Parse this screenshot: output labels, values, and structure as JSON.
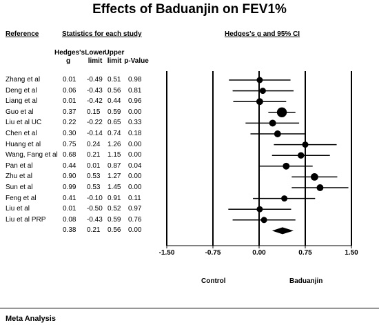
{
  "title": "Effects of Baduanjin on FEV1%",
  "headers": {
    "reference": "Reference",
    "statistics": "Statistics for each study",
    "plot": "Hedges's g and 95% CI"
  },
  "columns": {
    "g_line1": "Hedges's",
    "g_line2": "g",
    "lower_line1": "Lower",
    "lower_line2": "limit",
    "upper_line1": "Upper",
    "upper_line2": "limit",
    "p": "p-Value"
  },
  "footer": "Meta Analysis",
  "left_label": "Control",
  "right_label": "Baduanjin",
  "chart_data": {
    "type": "forest",
    "xlim": [
      -1.5,
      1.5
    ],
    "xticks": [
      -1.5,
      -0.75,
      0.0,
      0.75,
      1.5
    ],
    "xtick_labels": [
      "-1.50",
      "-0.75",
      "0.00",
      "0.75",
      "1.50"
    ],
    "studies": [
      {
        "name": "Zhang et al",
        "g": 0.01,
        "lower": -0.49,
        "upper": 0.51,
        "p": "0.98",
        "g_text": "0.01",
        "lower_text": "-0.49",
        "upper_text": "0.51",
        "weight": 1.0
      },
      {
        "name": "Deng et al",
        "g": 0.06,
        "lower": -0.43,
        "upper": 0.56,
        "p": "0.81",
        "g_text": "0.06",
        "lower_text": "-0.43",
        "upper_text": "0.56",
        "weight": 1.0
      },
      {
        "name": "Liang et al",
        "g": 0.01,
        "lower": -0.42,
        "upper": 0.44,
        "p": "0.96",
        "g_text": "0.01",
        "lower_text": "-0.42",
        "upper_text": "0.44",
        "weight": 1.1
      },
      {
        "name": "Guo et al",
        "g": 0.37,
        "lower": 0.15,
        "upper": 0.59,
        "p": "0.00",
        "g_text": "0.37",
        "lower_text": "0.15",
        "upper_text": "0.59",
        "weight": 1.6
      },
      {
        "name": "Liu et al UC",
        "g": 0.22,
        "lower": -0.22,
        "upper": 0.65,
        "p": "0.33",
        "g_text": "0.22",
        "lower_text": "-0.22",
        "upper_text": "0.65",
        "weight": 1.1
      },
      {
        "name": "Chen et al",
        "g": 0.3,
        "lower": -0.14,
        "upper": 0.74,
        "p": "0.18",
        "g_text": "0.30",
        "lower_text": "-0.14",
        "upper_text": "0.74",
        "weight": 1.1
      },
      {
        "name": "Huang et al",
        "g": 0.75,
        "lower": 0.24,
        "upper": 1.26,
        "p": "0.00",
        "g_text": "0.75",
        "lower_text": "0.24",
        "upper_text": "1.26",
        "weight": 1.0
      },
      {
        "name": "Wang, Fang et al",
        "g": 0.68,
        "lower": 0.21,
        "upper": 1.15,
        "p": "0.00",
        "g_text": "0.68",
        "lower_text": "0.21",
        "upper_text": "1.15",
        "weight": 1.05
      },
      {
        "name": "Pan et al",
        "g": 0.44,
        "lower": 0.01,
        "upper": 0.87,
        "p": "0.04",
        "g_text": "0.44",
        "lower_text": "0.01",
        "upper_text": "0.87",
        "weight": 1.1
      },
      {
        "name": "Zhu et al",
        "g": 0.9,
        "lower": 0.53,
        "upper": 1.27,
        "p": "0.00",
        "g_text": "0.90",
        "lower_text": "0.53",
        "upper_text": "1.27",
        "weight": 1.2
      },
      {
        "name": "Sun et al",
        "g": 0.99,
        "lower": 0.53,
        "upper": 1.45,
        "p": "0.00",
        "g_text": "0.99",
        "lower_text": "0.53",
        "upper_text": "1.45",
        "weight": 1.1
      },
      {
        "name": "Feng et al",
        "g": 0.41,
        "lower": -0.1,
        "upper": 0.91,
        "p": "0.11",
        "g_text": "0.41",
        "lower_text": "-0.10",
        "upper_text": "0.91",
        "weight": 1.0
      },
      {
        "name": "Liu et al",
        "g": 0.01,
        "lower": -0.5,
        "upper": 0.52,
        "p": "0.97",
        "g_text": "0.01",
        "lower_text": "-0.50",
        "upper_text": "0.52",
        "weight": 1.0
      },
      {
        "name": "Liu et al PRP",
        "g": 0.08,
        "lower": -0.43,
        "upper": 0.59,
        "p": "0.76",
        "g_text": "0.08",
        "lower_text": "-0.43",
        "upper_text": "0.59",
        "weight": 1.0
      }
    ],
    "summary": {
      "g": 0.38,
      "lower": 0.21,
      "upper": 0.56,
      "p": "0.00",
      "g_text": "0.38",
      "lower_text": "0.21",
      "upper_text": "0.56"
    }
  }
}
